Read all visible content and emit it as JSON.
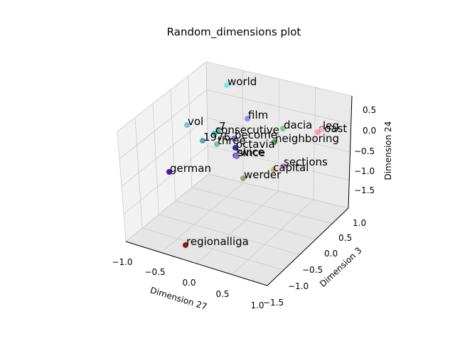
{
  "chart_data": {
    "type": "scatter",
    "projection": "3d",
    "title": "Random_dimensions plot",
    "xlabel": "Dimension 27",
    "ylabel": "Dimension 3",
    "zlabel": "Dimension 24",
    "xlim": [
      -1.0,
      1.0
    ],
    "ylim": [
      -1.5,
      1.0
    ],
    "zlim": [
      -1.5,
      0.5
    ],
    "xticks": [
      "−1.0",
      "−0.5",
      "0.0",
      "0.5",
      "1.0"
    ],
    "yticks": [
      "−1.5",
      "−1.0",
      "−0.5",
      "0.0",
      "0.5",
      "1.0"
    ],
    "zticks": [
      "−1.5",
      "−1.0",
      "−0.5",
      "0.0",
      "0.5"
    ],
    "grid": true,
    "points": [
      {
        "label": "world",
        "color": "#7fe8ec"
      },
      {
        "label": "film",
        "color": "#8f8ff0"
      },
      {
        "label": "dacia",
        "color": "#6fcf88"
      },
      {
        "label": "coast",
        "color": "#ff9aa0"
      },
      {
        "label": "leg",
        "color": "#f5b6c4"
      },
      {
        "label": "vol",
        "color": "#7cc8c4"
      },
      {
        "label": "7",
        "color": "#4fbf9a"
      },
      {
        "label": "consecutive",
        "color": "#55a8b8"
      },
      {
        "label": "1976",
        "color": "#5aa9a4"
      },
      {
        "label": "become",
        "color": "#7a70c0"
      },
      {
        "label": "neighboring",
        "color": "#3f9e50"
      },
      {
        "label": "three",
        "color": "#7fbf9f"
      },
      {
        "label": "octavia",
        "color": "#3a2aa8"
      },
      {
        "label": "twice",
        "color": "#8a3ae0"
      },
      {
        "label": "since",
        "color": "#8878c4"
      },
      {
        "label": "sections",
        "color": "#d090c8"
      },
      {
        "label": "capital",
        "color": "#c8b870"
      },
      {
        "label": "german",
        "color": "#4a10c0"
      },
      {
        "label": "werder",
        "color": "#a0a078"
      },
      {
        "label": "regionalliga",
        "color": "#8a2020"
      }
    ]
  }
}
